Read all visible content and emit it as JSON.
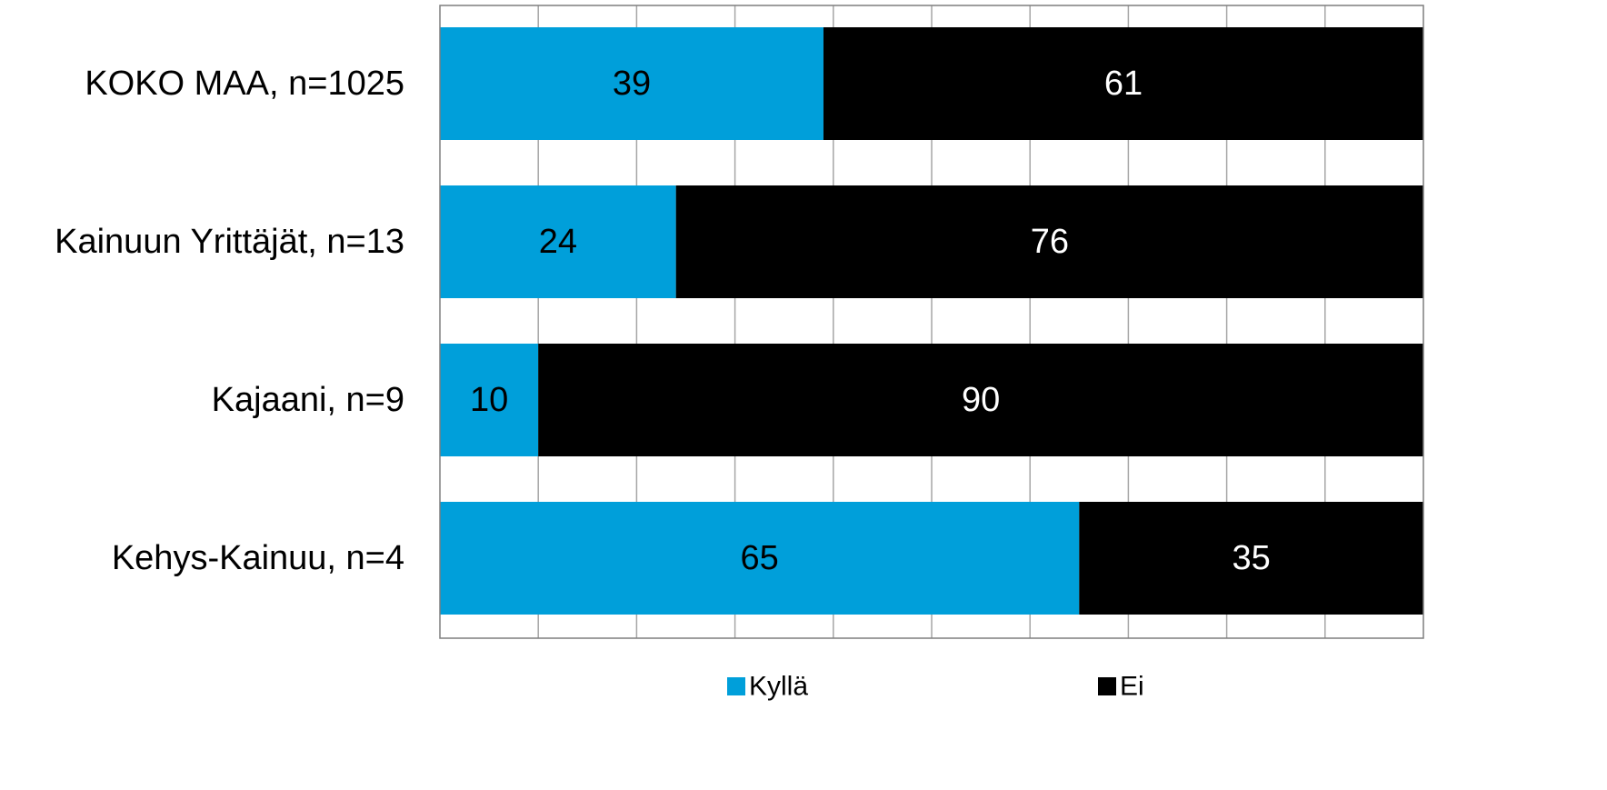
{
  "chart_data": {
    "type": "bar",
    "orientation": "horizontal",
    "stacked": true,
    "categories": [
      "KOKO MAA, n=1025",
      "Kainuun Yrittäjät, n=13",
      "Kajaani, n=9",
      "Kehys-Kainuu, n=4"
    ],
    "series": [
      {
        "name": "Kyllä",
        "values": [
          39,
          24,
          10,
          65
        ],
        "color": "#009fda",
        "label_color": "#000000"
      },
      {
        "name": "Ei",
        "values": [
          61,
          76,
          90,
          35
        ],
        "color": "#000000",
        "label_color": "#ffffff"
      }
    ],
    "xlim": [
      0,
      100
    ],
    "x_gridlines": 10,
    "grid": true,
    "legend_position": "bottom",
    "title": "",
    "xlabel": "",
    "ylabel": ""
  }
}
